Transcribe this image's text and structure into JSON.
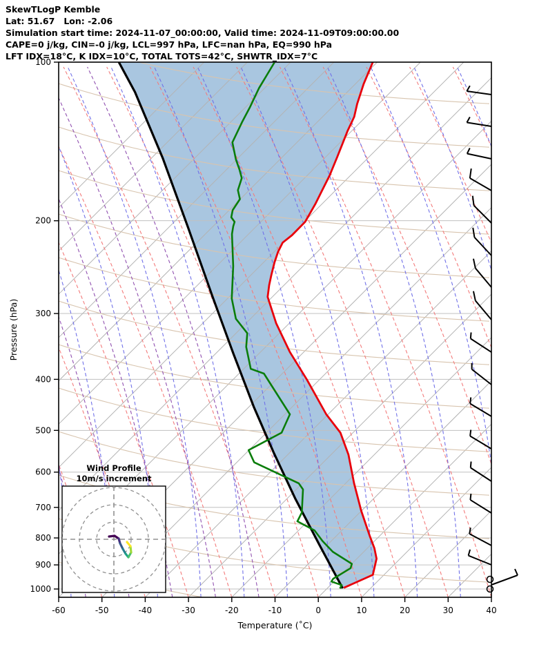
{
  "header": {
    "line1": "SkewTLogP Kemble",
    "line2": "Lat: 51.67   Lon: -2.06",
    "line3": "Simulation start time: 2024-11-07_00:00:00, Valid time: 2024-11-09T09:00:00.00",
    "line4": "CAPE=0 j/kg, CIN=-0 j/kg, LCL=997 hPa, LFC=nan hPa, EQ=990 hPa",
    "line5": "LFT IDX=18°C, K IDX=10°C, TOTAL TOTS=42°C, SHWTR_IDX=7°C"
  },
  "axes": {
    "x_label": "Temperature (˚C)",
    "y_label": "Pressure (hPa)",
    "x_ticks": [
      -60,
      -50,
      -40,
      -30,
      -20,
      -10,
      0,
      10,
      20,
      30,
      40
    ],
    "y_ticks": [
      100,
      200,
      300,
      400,
      500,
      600,
      700,
      800,
      900,
      1000
    ]
  },
  "inset": {
    "title_line1": "Wind Profile",
    "title_line2": "10m/s increment"
  },
  "colors": {
    "temperature": "#e8000b",
    "dewpoint": "#0a7d0a",
    "parcel": "#000000",
    "shading": "#a9c6e0",
    "isobar": "#c0c0c0",
    "isotherm": "#b3b3b3",
    "dry_adiabat_tan": "#d8c4ae",
    "red_dashed": "#f37b7b",
    "blue_dashed": "#7070e8",
    "purple_dashed": "#9050b0",
    "barb": "#000000",
    "inset_grid": "#909090",
    "trace_viridis": [
      "#440154",
      "#46327e",
      "#365c8d",
      "#277f8e",
      "#1fa187",
      "#4ac16d",
      "#a0da39",
      "#fde725"
    ]
  },
  "chart_data": {
    "type": "skewt-logp",
    "xlabel": "Temperature (°C)",
    "ylabel": "Pressure (hPa)",
    "xlim": [
      -60,
      40
    ],
    "p_top": 100,
    "p_bottom": 1030,
    "temperature_profile": [
      {
        "p": 995,
        "t": 4.8
      },
      {
        "p": 940,
        "t": 10.0
      },
      {
        "p": 876,
        "t": 9.0
      },
      {
        "p": 837,
        "t": 7.3
      },
      {
        "p": 793,
        "t": 4.8
      },
      {
        "p": 710,
        "t": -0.1
      },
      {
        "p": 630,
        "t": -4.9
      },
      {
        "p": 556,
        "t": -9.5
      },
      {
        "p": 505,
        "t": -13.9
      },
      {
        "p": 466,
        "t": -19.3
      },
      {
        "p": 401,
        "t": -27.7
      },
      {
        "p": 355,
        "t": -34.9
      },
      {
        "p": 313,
        "t": -41.4
      },
      {
        "p": 279,
        "t": -46.4
      },
      {
        "p": 265,
        "t": -47.4
      },
      {
        "p": 253,
        "t": -48.1
      },
      {
        "p": 240,
        "t": -48.8
      },
      {
        "p": 229,
        "t": -49.2
      },
      {
        "p": 220,
        "t": -49.2
      },
      {
        "p": 213,
        "t": -47.9
      },
      {
        "p": 201,
        "t": -46.4
      },
      {
        "p": 186,
        "t": -46.1
      },
      {
        "p": 175,
        "t": -46.1
      },
      {
        "p": 164,
        "t": -46.1
      },
      {
        "p": 151,
        "t": -46.5
      },
      {
        "p": 135,
        "t": -47.1
      },
      {
        "p": 127,
        "t": -47.2
      },
      {
        "p": 120,
        "t": -48.0
      },
      {
        "p": 110,
        "t": -48.8
      },
      {
        "p": 100,
        "t": -49.2
      }
    ],
    "dewpoint_profile": [
      {
        "p": 998,
        "t": 4.0
      },
      {
        "p": 983,
        "t": 4.0
      },
      {
        "p": 968,
        "t": 1.2
      },
      {
        "p": 956,
        "t": 1.3
      },
      {
        "p": 913,
        "t": 4.1
      },
      {
        "p": 896,
        "t": 3.9
      },
      {
        "p": 850,
        "t": -1.9
      },
      {
        "p": 811,
        "t": -5.5
      },
      {
        "p": 774,
        "t": -8.6
      },
      {
        "p": 744,
        "t": -13.6
      },
      {
        "p": 716,
        "t": -13.6
      },
      {
        "p": 647,
        "t": -16.0
      },
      {
        "p": 630,
        "t": -17.7
      },
      {
        "p": 575,
        "t": -30.4
      },
      {
        "p": 545,
        "t": -33.1
      },
      {
        "p": 505,
        "t": -27.5
      },
      {
        "p": 466,
        "t": -27.7
      },
      {
        "p": 390,
        "t": -38.4
      },
      {
        "p": 382,
        "t": -42.0
      },
      {
        "p": 347,
        "t": -45.6
      },
      {
        "p": 327,
        "t": -46.9
      },
      {
        "p": 307,
        "t": -51.2
      },
      {
        "p": 281,
        "t": -54.5
      },
      {
        "p": 244,
        "t": -57.9
      },
      {
        "p": 212,
        "t": -61.9
      },
      {
        "p": 205,
        "t": -62.5
      },
      {
        "p": 201,
        "t": -62.7
      },
      {
        "p": 197,
        "t": -64.0
      },
      {
        "p": 191,
        "t": -64.5
      },
      {
        "p": 182,
        "t": -64.1
      },
      {
        "p": 175,
        "t": -65.6
      },
      {
        "p": 166,
        "t": -66.1
      },
      {
        "p": 160,
        "t": -67.6
      },
      {
        "p": 153,
        "t": -69.6
      },
      {
        "p": 142,
        "t": -72.4
      },
      {
        "p": 130,
        "t": -72.5
      },
      {
        "p": 122,
        "t": -72.4
      },
      {
        "p": 112,
        "t": -72.5
      },
      {
        "p": 100,
        "t": -71.9
      }
    ],
    "parcel_profile": [
      {
        "p": 997,
        "t": 4.6
      },
      {
        "p": 823,
        "t": -5.9
      },
      {
        "p": 674,
        "t": -16.7
      },
      {
        "p": 550,
        "t": -27.1
      },
      {
        "p": 452,
        "t": -36.8
      },
      {
        "p": 358,
        "t": -47.7
      },
      {
        "p": 279,
        "t": -59.1
      },
      {
        "p": 206,
        "t": -72.8
      },
      {
        "p": 152,
        "t": -86.7
      },
      {
        "p": 114,
        "t": -100.7
      },
      {
        "p": 100,
        "t": -107.9
      }
    ],
    "wind_barbs": [
      {
        "y": 137,
        "angle": 8,
        "type": "half"
      },
      {
        "y": 183,
        "angle": 9,
        "type": "half"
      },
      {
        "y": 230,
        "angle": 12,
        "type": "half"
      },
      {
        "y": 276,
        "angle": 30,
        "type": "full"
      },
      {
        "y": 323,
        "angle": 45,
        "type": "full"
      },
      {
        "y": 370,
        "angle": 47,
        "type": "full"
      },
      {
        "y": 416,
        "angle": 50,
        "type": "full"
      },
      {
        "y": 463,
        "angle": 50,
        "type": "full"
      },
      {
        "y": 510,
        "angle": 33,
        "type": "half"
      },
      {
        "y": 557,
        "angle": 38,
        "type": "half"
      },
      {
        "y": 603,
        "angle": 31,
        "type": "half"
      },
      {
        "y": 650,
        "angle": 31,
        "type": "half"
      },
      {
        "y": 697,
        "angle": 33,
        "type": "half"
      },
      {
        "y": 743,
        "angle": 32,
        "type": "half"
      },
      {
        "y": 790,
        "angle": 28,
        "type": "half"
      },
      {
        "y": 818,
        "angle": 22,
        "type": "half"
      },
      {
        "y": 839,
        "angle": 0,
        "type": "calm"
      },
      {
        "y": 853,
        "angle": 0,
        "type": "calm"
      },
      {
        "y": 847,
        "angle": 0,
        "type": "surface-right"
      }
    ],
    "hodograph_trace": [
      [
        158,
        777
      ],
      [
        166,
        776
      ],
      [
        172,
        780
      ],
      [
        174,
        787
      ],
      [
        178,
        795
      ],
      [
        182,
        802
      ],
      [
        186,
        807
      ],
      [
        190,
        800
      ],
      [
        189,
        791
      ],
      [
        184,
        785
      ]
    ],
    "legend_position": "none",
    "grid": true
  }
}
